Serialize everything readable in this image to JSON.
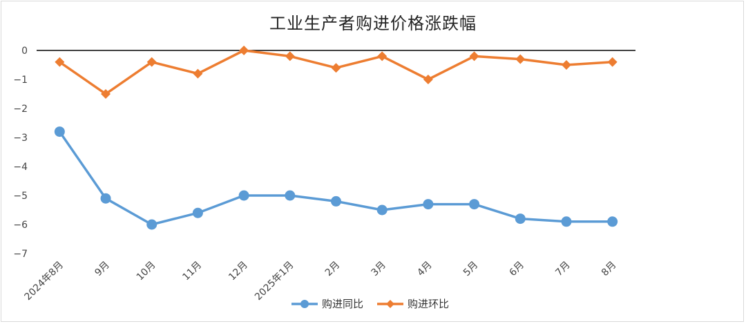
{
  "chart_data": {
    "type": "line",
    "title": "工业生产者购进价格涨跌幅",
    "categories": [
      "2024年8月",
      "9月",
      "10月",
      "11月",
      "12月",
      "2025年1月",
      "2月",
      "3月",
      "4月",
      "5月",
      "6月",
      "7月",
      "8月"
    ],
    "y_ticks": [
      "0",
      "−1",
      "−2",
      "−3",
      "−4",
      "−5",
      "−6",
      "−7"
    ],
    "ylim": [
      -7,
      0
    ],
    "grid": false,
    "legend_position": "bottom",
    "series": [
      {
        "name": "购进同比",
        "color": "#5b9bd5",
        "marker": "circle",
        "values": [
          -2.8,
          -5.1,
          -6.0,
          -5.6,
          -5.0,
          -5.0,
          -5.2,
          -5.5,
          -5.3,
          -5.3,
          -5.8,
          -5.9,
          -5.9
        ]
      },
      {
        "name": "购进环比",
        "color": "#ed7d31",
        "marker": "diamond",
        "values": [
          -0.4,
          -1.5,
          -0.4,
          -0.8,
          0.0,
          -0.2,
          -0.6,
          -0.2,
          -1.0,
          -0.2,
          -0.3,
          -0.5,
          -0.4
        ]
      }
    ]
  }
}
